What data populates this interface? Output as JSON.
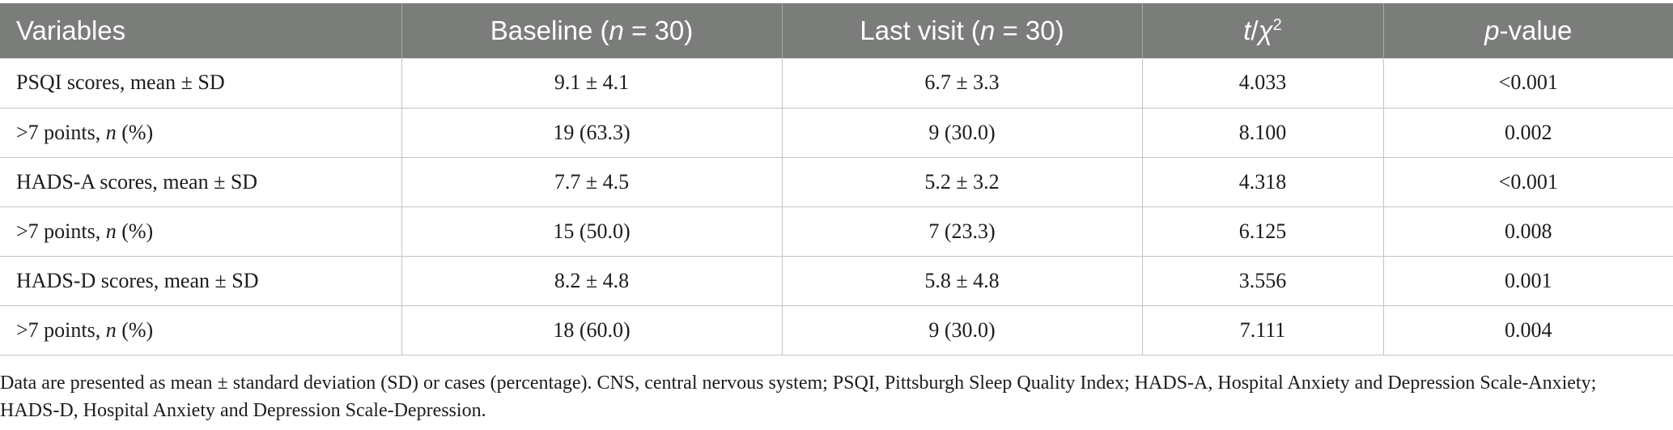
{
  "table": {
    "headers": {
      "variables": "Variables",
      "baseline_prefix": "Baseline (",
      "baseline_n": "n",
      "baseline_suffix": " = 30)",
      "last_prefix": "Last visit (",
      "last_n": "n",
      "last_suffix": " = 30)",
      "test_t": "t",
      "test_sep": "/",
      "test_chi": "χ",
      "test_sup": "2",
      "p_p": "p",
      "p_suffix": "-value"
    },
    "rows": [
      {
        "label": "PSQI scores, mean ± SD",
        "label_it": "",
        "label_end": "",
        "baseline": "9.1 ± 4.1",
        "last": "6.7 ± 3.3",
        "stat": "4.033",
        "p": "<0.001"
      },
      {
        "label": ">7 points, ",
        "label_it": "n",
        "label_end": " (%)",
        "baseline": "19 (63.3)",
        "last": "9 (30.0)",
        "stat": "8.100",
        "p": "0.002"
      },
      {
        "label": "HADS-A scores, mean ± SD",
        "label_it": "",
        "label_end": "",
        "baseline": "7.7 ± 4.5",
        "last": "5.2 ± 3.2",
        "stat": "4.318",
        "p": "<0.001"
      },
      {
        "label": ">7 points, ",
        "label_it": "n",
        "label_end": " (%)",
        "baseline": "15 (50.0)",
        "last": "7 (23.3)",
        "stat": "6.125",
        "p": "0.008"
      },
      {
        "label": "HADS-D scores, mean ± SD",
        "label_it": "",
        "label_end": "",
        "baseline": "8.2 ± 4.8",
        "last": "5.8 ± 4.8",
        "stat": "3.556",
        "p": "0.001"
      },
      {
        "label": ">7 points, ",
        "label_it": "n",
        "label_end": " (%)",
        "baseline": "18 (60.0)",
        "last": "9 (30.0)",
        "stat": "7.111",
        "p": "0.004"
      }
    ]
  },
  "footnote": "Data are presented as mean ± standard deviation (SD) or cases (percentage). CNS, central nervous system; PSQI, Pittsburgh Sleep Quality Index; HADS-A, Hospital Anxiety and Depression Scale-Anxiety; HADS-D, Hospital Anxiety and Depression Scale-Depression.",
  "colors": {
    "header_bg": "#7b7d7b",
    "header_text": "#ffffff",
    "grid": "#c4c4c4"
  }
}
